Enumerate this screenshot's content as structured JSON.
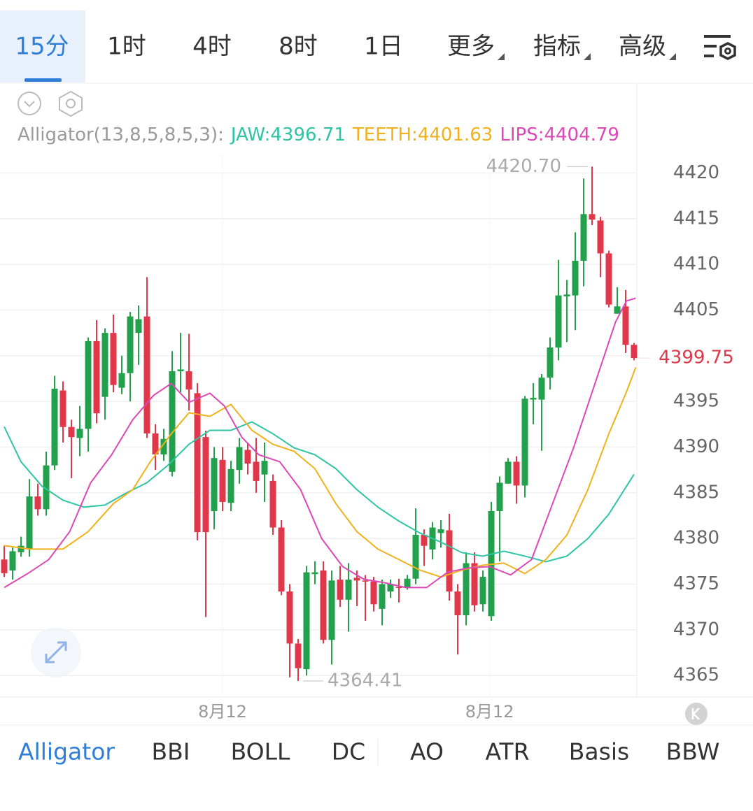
{
  "tabs": {
    "timeframes": [
      "15分",
      "1时",
      "4时",
      "8时",
      "1日"
    ],
    "menus": [
      "更多",
      "指标",
      "高级"
    ],
    "active": 0
  },
  "chart_data": {
    "type": "candlestick",
    "indicator_label": "Alligator(13,8,5,8,5,3):",
    "series": [
      {
        "name": "JAW:4396.71",
        "color": "#2ec4a4",
        "x": [
          0,
          2,
          4.5,
          7,
          9.5,
          12,
          14.5,
          17,
          19.5,
          22,
          24.5,
          27,
          29.5,
          32,
          34.5,
          37,
          39.5,
          42,
          44.5,
          47,
          49.5,
          52,
          54.5,
          57,
          59.5,
          62,
          64.5,
          67,
          69.5,
          72,
          75
        ],
        "values": [
          4392.23,
          4388.4,
          4385.72,
          4384.19,
          4383.43,
          4383.66,
          4384.96,
          4386.11,
          4388.02,
          4390.31,
          4391.84,
          4391.84,
          4392.76,
          4391.46,
          4389.93,
          4389.17,
          4387.64,
          4385.34,
          4383.43,
          4381.9,
          4380.6,
          4379.6,
          4378.45,
          4378.07,
          4378.61,
          4378.07,
          4377.46,
          4378.07,
          4379.98,
          4382.66,
          4387.02
        ]
      },
      {
        "name": "TEETH:4401.63",
        "color": "#f0b21c",
        "x": [
          0,
          3,
          7,
          10,
          13,
          15.3,
          17.4,
          19.9,
          22,
          24.5,
          27,
          29.5,
          32,
          34.5,
          37,
          39.5,
          42,
          44.5,
          47,
          49.5,
          52,
          54.5,
          57,
          59.5,
          62,
          64.5,
          67,
          69.5,
          72,
          74.1,
          75.2
        ],
        "values": [
          4379.22,
          4378.84,
          4378.84,
          4380.75,
          4383.81,
          4385.34,
          4388.4,
          4391.46,
          4393.76,
          4393.37,
          4394.67,
          4391.84,
          4390.31,
          4389.55,
          4387.64,
          4383.81,
          4380.75,
          4378.84,
          4377.69,
          4376.54,
          4375.78,
          4376.54,
          4377.08,
          4377.31,
          4376.16,
          4377.69,
          4380.37,
          4385.34,
          4391.46,
          4396.05,
          4398.73
        ]
      },
      {
        "name": "LIPS:4404.79",
        "color": "#dc48b6",
        "x": [
          0,
          2.8,
          5.3,
          7.8,
          10.3,
          12.8,
          15.3,
          17.8,
          19.9,
          22,
          24.5,
          26.2,
          28.3,
          30.3,
          32.8,
          35.3,
          37.8,
          40.3,
          42.8,
          45.3,
          47.8,
          50.3,
          52.8,
          55.3,
          57.8,
          60.3,
          62.8,
          65.3,
          67.8,
          70.3,
          72.8,
          74.1,
          75.2
        ],
        "values": [
          4374.63,
          4376.16,
          4377.69,
          4380.75,
          4386.11,
          4389.17,
          4392.99,
          4395.67,
          4396.97,
          4394.9,
          4395.9,
          4394.52,
          4391.08,
          4389.17,
          4388.4,
          4385.34,
          4380,
          4376.93,
          4375.55,
          4375.16,
          4374.63,
          4374.63,
          4376.31,
          4376.77,
          4376.93,
          4376.01,
          4377.69,
          4383.81,
          4389.93,
          4396.82,
          4403.7,
          4406,
          4406.3
        ]
      }
    ],
    "candles": {
      "open": [
        4377.7,
        4376.5,
        4378.5,
        4378.9,
        4384.6,
        4383.2,
        4388,
        4396.2,
        4392.2,
        4391,
        4392,
        4401.6,
        4395.5,
        4402.5,
        4396.5,
        4398.1,
        4402.5,
        4404.3,
        4391.5,
        4389.2,
        4387.3,
        4398.3,
        4398.3,
        4395.9,
        4391.1,
        4383,
        4388.6,
        4383.9,
        4387.5,
        4389.7,
        4388.4,
        4387,
        4386.3,
        4381.2,
        4374.2,
        4368.5,
        4365.7,
        4376.1,
        4376.5,
        4368.9,
        4375.5,
        4373.3,
        4375.7,
        4375.4,
        4375.3,
        4372.3,
        4374.2,
        4374.7,
        4374.6,
        4375.6,
        4380.4,
        4378.8,
        4380.6,
        4380.9,
        4374.2,
        4371.6,
        4377.3,
        4372.8,
        4371.5,
        4383,
        4386,
        4388.4,
        4385.8,
        4395.2,
        4395.2,
        4397.6,
        4400.9,
        4406.5,
        4406.6,
        4410.4,
        4415.5,
        4414.8,
        4411.2,
        4404.6,
        4405.4,
        4401.2
      ],
      "high": [
        4379.2,
        4379,
        4380.2,
        4386.5,
        4386,
        4389.5,
        4397.8,
        4397.2,
        4393,
        4394.5,
        4402,
        4403.9,
        4403,
        4404.5,
        4400,
        4404.8,
        4405.5,
        4408.6,
        4392.5,
        4392,
        4400.5,
        4402.5,
        4402.4,
        4397,
        4391.8,
        4390,
        4390,
        4388.5,
        4391,
        4390.5,
        4391,
        4390.5,
        4387,
        4382,
        4375,
        4369,
        4377,
        4377.5,
        4377.5,
        4376.5,
        4377,
        4377.3,
        4376.5,
        4376,
        4375.8,
        4375.5,
        4375.5,
        4375.6,
        4376,
        4383.3,
        4381,
        4381.8,
        4382,
        4382.7,
        4375,
        4378.5,
        4378.5,
        4376.5,
        4384,
        4386.8,
        4388.8,
        4389,
        4395.6,
        4397,
        4398,
        4402,
        4410.5,
        4408.3,
        4413.5,
        4419.4,
        4420.7,
        4415.2,
        4411.5,
        4407.5,
        4407.2,
        4401.4
      ],
      "low": [
        4375.8,
        4375.5,
        4378,
        4378,
        4382.5,
        4382.5,
        4387.5,
        4390.5,
        4386.6,
        4389,
        4389.5,
        4392.6,
        4393,
        4396,
        4395.8,
        4395,
        4399,
        4391,
        4387.5,
        4388.5,
        4386.8,
        4396,
        4394,
        4379.8,
        4371.4,
        4381,
        4383,
        4383,
        4386,
        4387,
        4385,
        4384,
        4380.4,
        4373.8,
        4364.8,
        4364.41,
        4365,
        4375,
        4368.5,
        4366.2,
        4372.5,
        4369.8,
        4372.6,
        4371,
        4372,
        4370.5,
        4373.5,
        4373,
        4374.4,
        4375,
        4377,
        4377.7,
        4379,
        4373.2,
        4367.3,
        4370.5,
        4372,
        4372,
        4371,
        4377.5,
        4386,
        4383.8,
        4384.5,
        4392.5,
        4389.6,
        4396.3,
        4399.5,
        4401.5,
        4402.8,
        4407.6,
        4414.3,
        4408.6,
        4405.3,
        4404.6,
        4400.3,
        4399.5
      ],
      "close": [
        4376.2,
        4378.6,
        4379.2,
        4384.6,
        4383.2,
        4388,
        4396.4,
        4392.2,
        4391.1,
        4392,
        4401.6,
        4393.7,
        4402.5,
        4396.8,
        4398.1,
        4404.3,
        4404,
        4391.5,
        4389.2,
        4390.9,
        4398.3,
        4398.5,
        4396.3,
        4380.7,
        4380.7,
        4388.8,
        4384,
        4387.6,
        4390,
        4388.2,
        4386.3,
        4388.5,
        4381.2,
        4374.2,
        4368.5,
        4365.8,
        4376.3,
        4376.3,
        4368.9,
        4375.4,
        4373.3,
        4375.5,
        4375.4,
        4375.3,
        4372.8,
        4375,
        4375,
        4374.6,
        4375.6,
        4380.4,
        4379.2,
        4381.2,
        4381,
        4374.2,
        4371.6,
        4377.3,
        4372.7,
        4375.8,
        4383,
        4386.1,
        4388.4,
        4385.8,
        4395.3,
        4395.4,
        4397.6,
        4400.9,
        4406.6,
        4406.7,
        4410.4,
        4415.5,
        4414.9,
        4411.2,
        4405.6,
        4405.4,
        4401.2,
        4399.75
      ]
    },
    "up_color": "#22a04b",
    "down_color": "#e0384a",
    "ylim": [
      4362.8,
      4422.1
    ],
    "yticks": [
      4365,
      4370,
      4375,
      4380,
      4385,
      4390,
      4395,
      4400,
      4405,
      4410,
      4415,
      4420
    ],
    "xticks": [
      {
        "value": 26,
        "label": "8月12"
      },
      {
        "value": 57.8,
        "label": "8月12"
      }
    ],
    "grid": true,
    "max_label": "4420.70",
    "min_label": "4364.41",
    "last_price_label": "4399.75"
  },
  "indicator_tabs": {
    "items": [
      "Alligator",
      "BBI",
      "BOLL",
      "DC",
      "AO",
      "ATR",
      "Basis",
      "BBW"
    ],
    "active": 0
  }
}
